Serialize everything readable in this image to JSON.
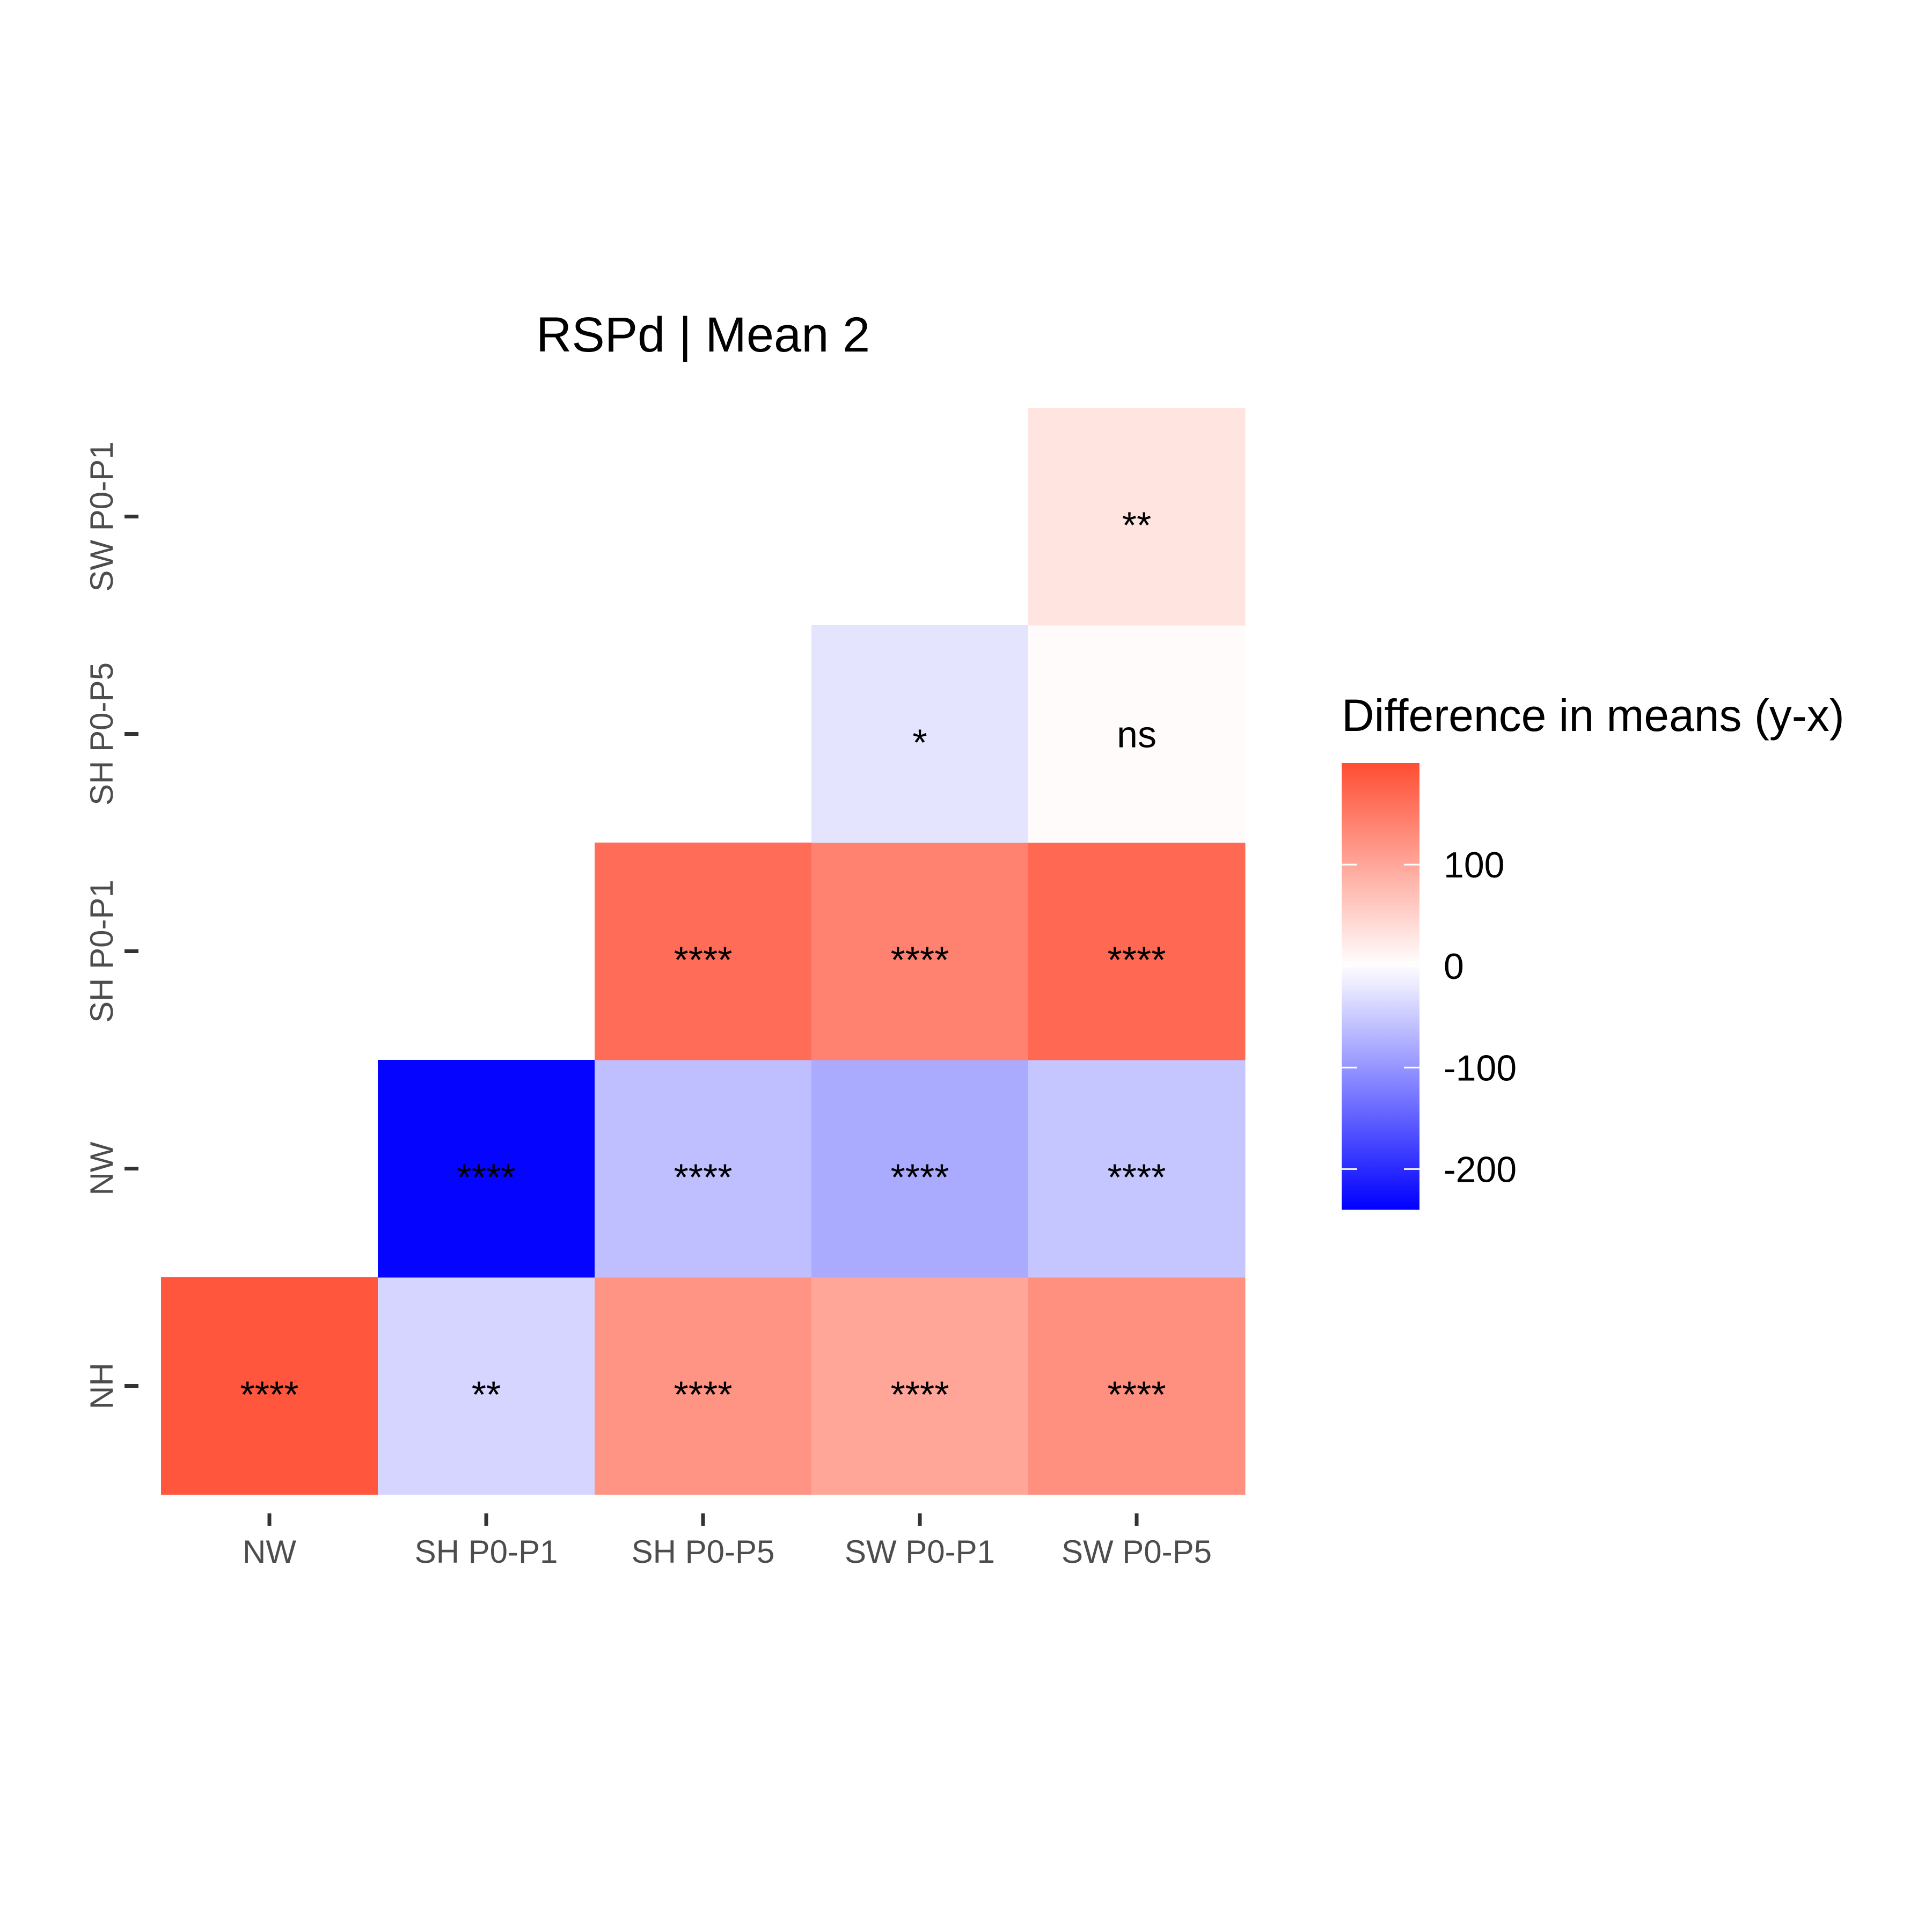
{
  "chart_data": {
    "type": "heatmap",
    "title": "RSPd | Mean 2",
    "x_categories": [
      "NW",
      "SH P0-P1",
      "SH P0-P5",
      "SW P0-P1",
      "SW P0-P5"
    ],
    "y_categories": [
      "NH",
      "NW",
      "SH P0-P1",
      "SH P0-P5",
      "SW P0-P1"
    ],
    "cells": [
      {
        "x": "NW",
        "y": "NH",
        "value": 190,
        "label": "****"
      },
      {
        "x": "SH P0-P1",
        "y": "NH",
        "value": -40,
        "label": "**"
      },
      {
        "x": "SH P0-P5",
        "y": "NH",
        "value": 120,
        "label": "****"
      },
      {
        "x": "SW P0-P1",
        "y": "NH",
        "value": 100,
        "label": "****"
      },
      {
        "x": "SW P0-P5",
        "y": "NH",
        "value": 125,
        "label": "****"
      },
      {
        "x": "SH P0-P1",
        "y": "NW",
        "value": -235,
        "label": "****"
      },
      {
        "x": "SH P0-P5",
        "y": "NW",
        "value": -60,
        "label": "****"
      },
      {
        "x": "SW P0-P1",
        "y": "NW",
        "value": -80,
        "label": "****"
      },
      {
        "x": "SW P0-P5",
        "y": "NW",
        "value": -55,
        "label": "****"
      },
      {
        "x": "SH P0-P5",
        "y": "SH P0-P1",
        "value": 165,
        "label": "****"
      },
      {
        "x": "SW P0-P1",
        "y": "SH P0-P1",
        "value": 140,
        "label": "****"
      },
      {
        "x": "SW P0-P5",
        "y": "SH P0-P1",
        "value": 170,
        "label": "****"
      },
      {
        "x": "SW P0-P1",
        "y": "SH P0-P5",
        "value": -25,
        "label": "*"
      },
      {
        "x": "SW P0-P5",
        "y": "SH P0-P5",
        "value": 5,
        "label": "ns"
      },
      {
        "x": "SW P0-P5",
        "y": "SW P0-P1",
        "value": 30,
        "label": "**"
      }
    ],
    "legend": {
      "title": "Difference in means (y-x)",
      "breaks": [
        100,
        0,
        -100,
        -200
      ],
      "break_labels": [
        "100",
        "0",
        "-100",
        "-200"
      ],
      "limits": [
        -240,
        200
      ],
      "low_color": "#0000ff",
      "mid_color": "#ffffff",
      "high_color": "#ff4d33",
      "placement": "right"
    },
    "grid": false
  }
}
